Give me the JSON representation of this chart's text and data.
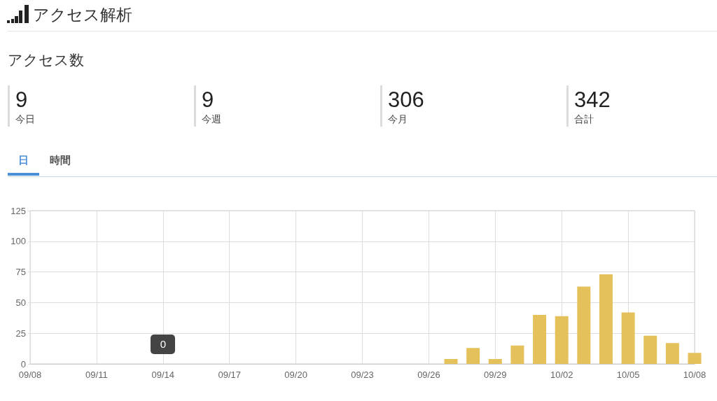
{
  "chart_data": [
    {
      "type": "other",
      "title": "アクセス解析",
      "subtitle": "アクセス数",
      "annotations": [
        "9",
        "今日",
        "9",
        "今週",
        "306",
        "今月",
        "342",
        "合計"
      ]
    },
    {
      "type": "bar",
      "categories": [
        "09/08",
        null,
        null,
        "09/11",
        null,
        null,
        "09/14",
        null,
        null,
        "09/17",
        null,
        null,
        "09/20",
        null,
        null,
        "09/23",
        null,
        null,
        "09/26",
        null,
        null,
        "09/29",
        null,
        null,
        "10/02",
        null,
        null,
        "10/05",
        null,
        null,
        "10/08"
      ],
      "values": [
        0,
        0,
        0,
        0,
        0,
        0,
        0,
        0,
        0,
        0,
        0,
        0,
        0,
        0,
        0,
        0,
        0,
        0,
        0,
        4,
        13,
        4,
        15,
        40,
        39,
        63,
        73,
        42,
        23,
        17,
        9
      ],
      "color": "#e4c15a",
      "ylim": [
        0,
        125
      ],
      "yticks": [
        0,
        25,
        50,
        75,
        100,
        125
      ],
      "grid": true,
      "annotations": [
        "日",
        "時間",
        {
          "text": "0",
          "x": "09/14",
          "y": 0
        }
      ]
    }
  ]
}
